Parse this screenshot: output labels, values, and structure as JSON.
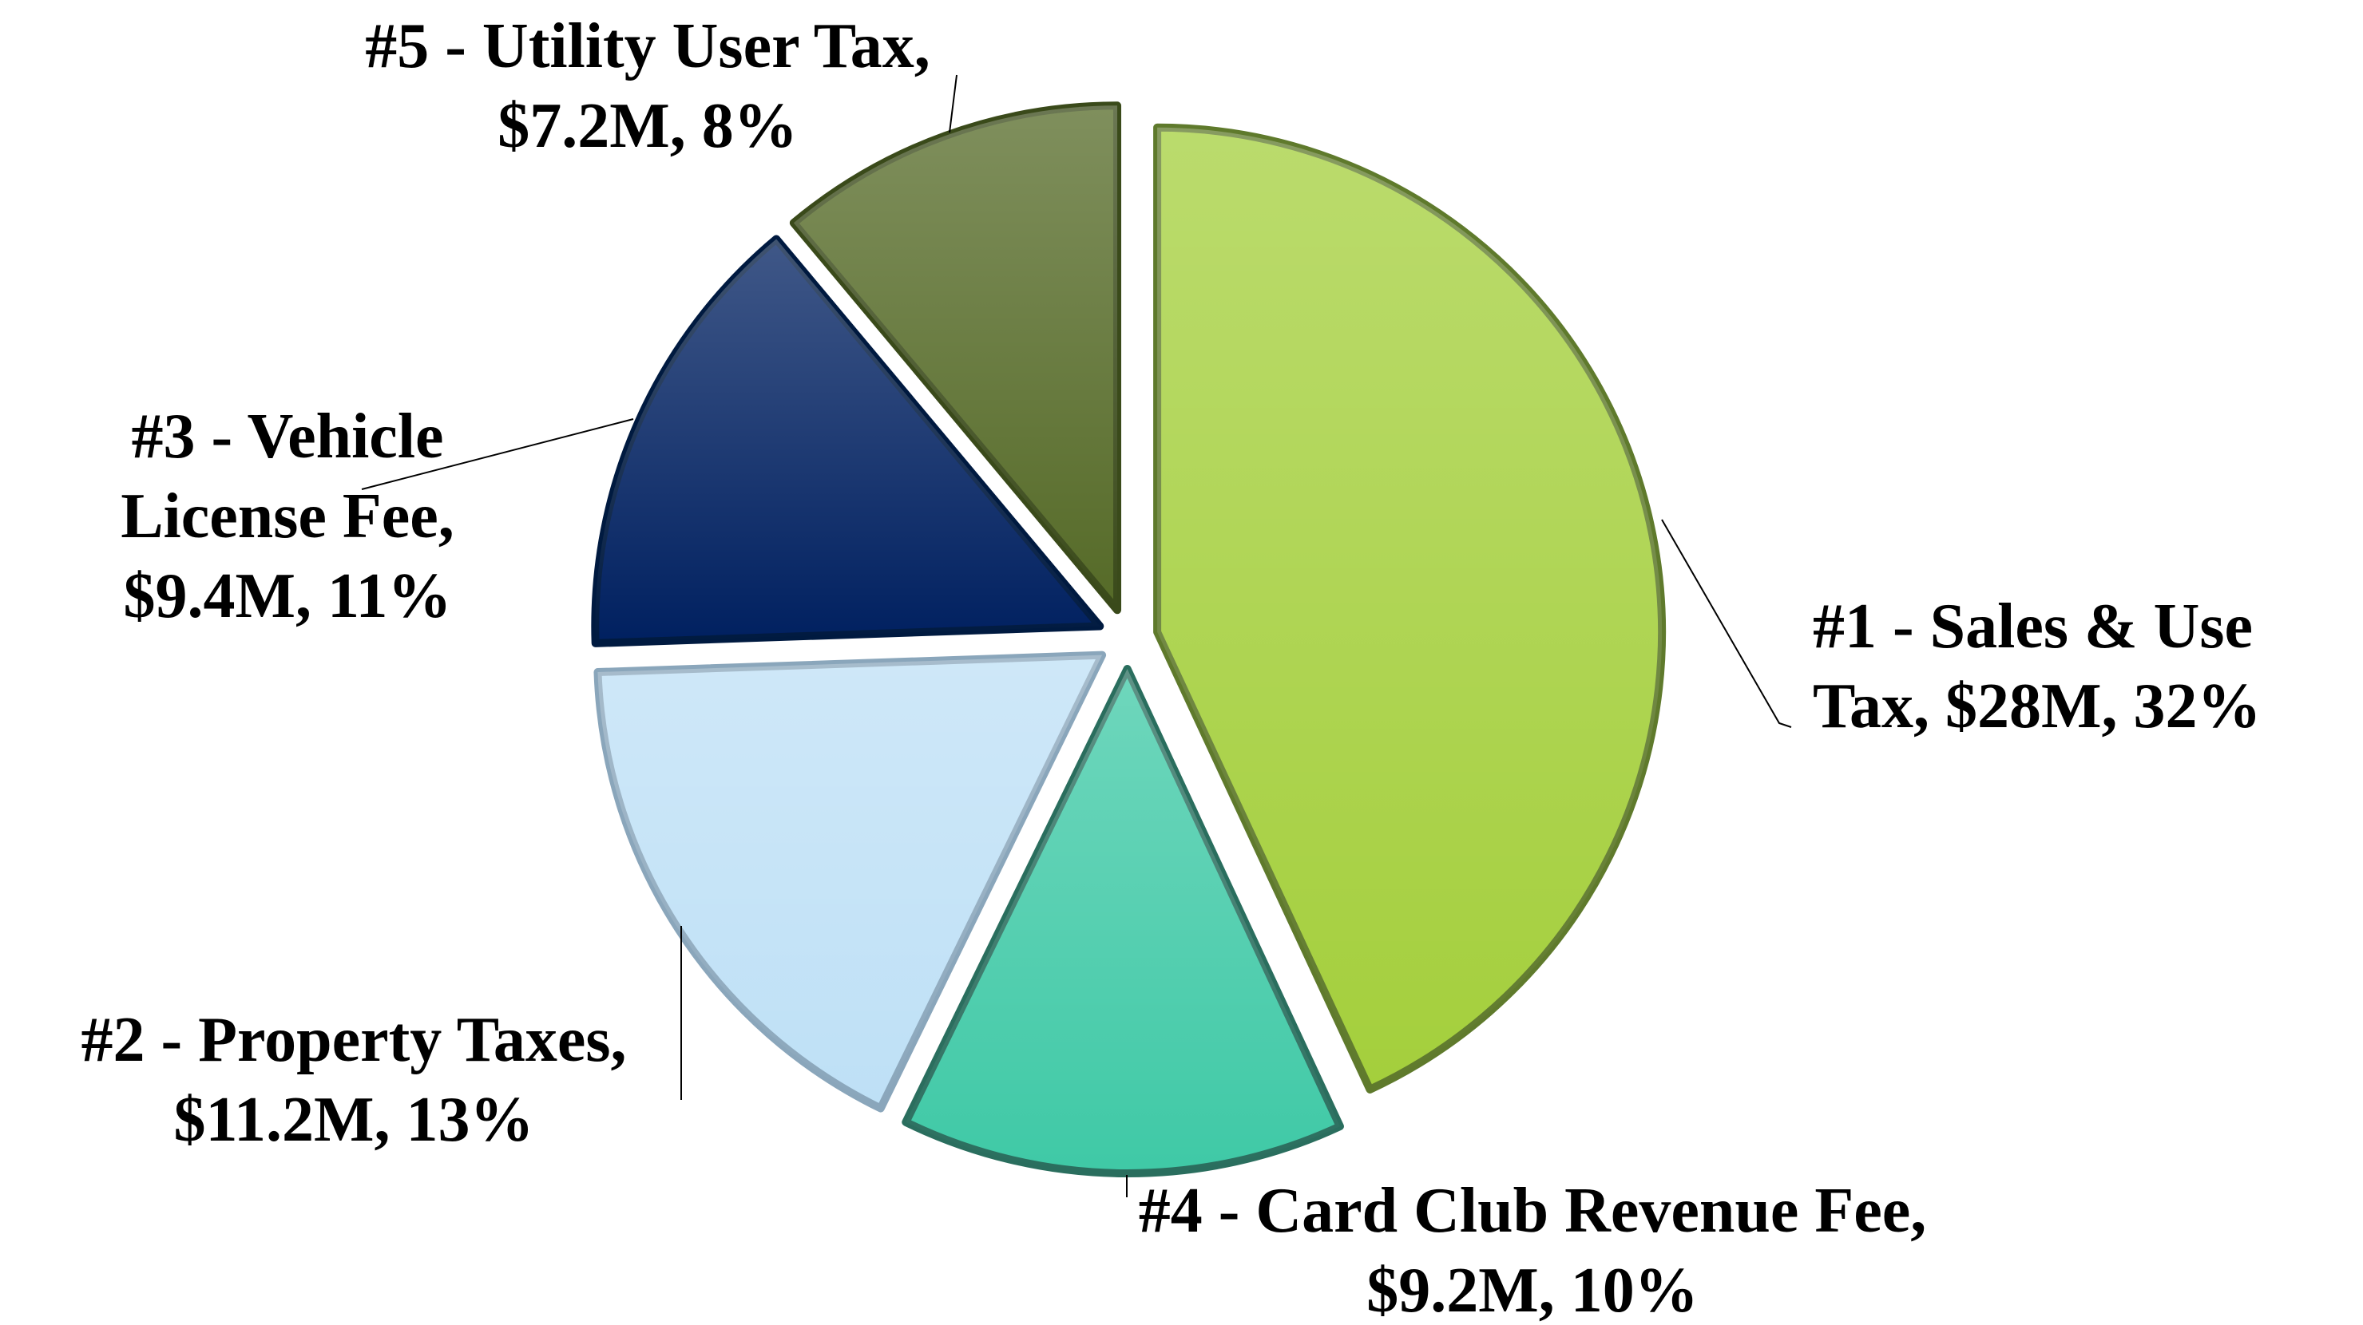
{
  "chart_data": {
    "type": "pie",
    "categories": [
      "#1 - Sales & Use Tax,",
      "#4 - Card Club Revenue Fee,",
      "#2 - Property Taxes,",
      "#3 - Vehicle License Fee,",
      "#5 - Utility User Tax,"
    ],
    "values": [
      28,
      9.2,
      11.2,
      9.4,
      7.2
    ],
    "value_labels": [
      "$28M,",
      "$9.2M,",
      "$11.2M,",
      "$9.4M,",
      "$7.2M,"
    ],
    "percents": [
      32,
      10,
      13,
      11,
      8
    ],
    "percent_labels": [
      "32%",
      "10%",
      "13%",
      "11%",
      "8%"
    ],
    "colors": [
      "#a4cf3c",
      "#3fc9a6",
      "#bee0f6",
      "#002060",
      "#556a27"
    ],
    "edge_colors": [
      "#5f7a2c",
      "#2a6e5e",
      "#8aa6bb",
      "#001a40",
      "#3a4a1a"
    ]
  }
}
